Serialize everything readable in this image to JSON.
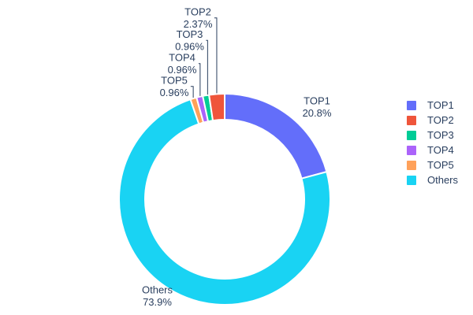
{
  "chart_data": {
    "type": "pie",
    "subtype": "donut",
    "title": "",
    "labels": [
      "TOP1",
      "TOP2",
      "TOP3",
      "TOP4",
      "TOP5",
      "Others"
    ],
    "values": [
      20.8,
      2.37,
      0.96,
      0.96,
      0.96,
      73.9
    ],
    "percent_labels": [
      "20.8%",
      "2.37%",
      "0.96%",
      "0.96%",
      "0.96%",
      "73.9%"
    ],
    "colors": [
      "#636EFA",
      "#EF553B",
      "#00CC96",
      "#AB63FA",
      "#FFA15A",
      "#19D3F3"
    ],
    "hole": 0.75,
    "background_color": "#FFFFFF",
    "text_color": "#2A3F5F",
    "leader_line_color": "#2A3F5F",
    "slice_border_color": "#FFFFFF",
    "legend": {
      "position": "right",
      "entries": [
        "TOP1",
        "TOP2",
        "TOP3",
        "TOP4",
        "TOP5",
        "Others"
      ]
    },
    "draw_order_clockwise_from_top": [
      "TOP1",
      "Others",
      "TOP5",
      "TOP4",
      "TOP3",
      "TOP2"
    ]
  }
}
